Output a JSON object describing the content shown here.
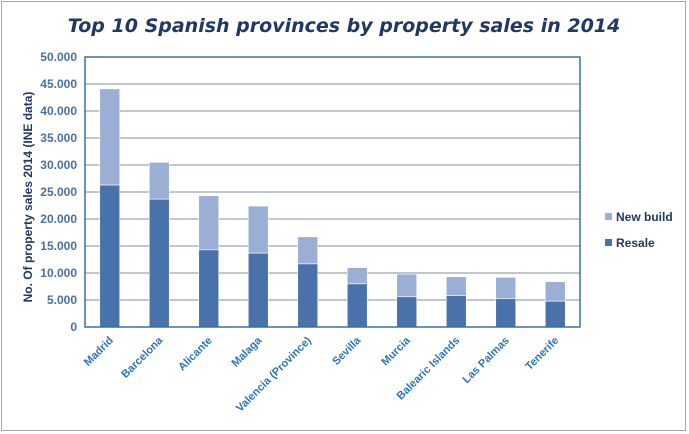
{
  "chart_data": {
    "type": "bar",
    "stacked": true,
    "title": "Top 10 Spanish provinces by property sales in 2014",
    "ylabel": "No. Of property sales 2014  (INE data)",
    "xlabel": "",
    "ylim": [
      0,
      50000
    ],
    "yticks": [
      "0",
      "5.000",
      "10.000",
      "15.000",
      "20.000",
      "25.000",
      "30.000",
      "35.000",
      "40.000",
      "45.000",
      "50.000"
    ],
    "grid": true,
    "legend": "right",
    "categories": [
      "Madrid",
      "Barcelona",
      "Alicante",
      "Malaga",
      "Valencia (Province)",
      "Sevilla",
      "Murcia",
      "Balearic Islands",
      "Las Palmas",
      "Tenerife"
    ],
    "series": [
      {
        "name": "Resale",
        "color": "#4a72aa",
        "values": [
          26300,
          23700,
          14300,
          13700,
          11700,
          8000,
          5600,
          5800,
          5300,
          4800
        ]
      },
      {
        "name": "New build",
        "color": "#9aaed6",
        "values": [
          17800,
          6800,
          10000,
          8700,
          5000,
          3000,
          4200,
          3500,
          3900,
          3600
        ]
      }
    ]
  }
}
